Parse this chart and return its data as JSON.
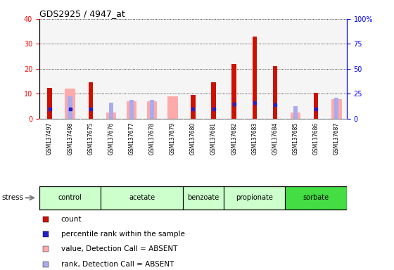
{
  "title": "GDS2925 / 4947_at",
  "samples": [
    "GSM137497",
    "GSM137498",
    "GSM137675",
    "GSM137676",
    "GSM137677",
    "GSM137678",
    "GSM137679",
    "GSM137680",
    "GSM137681",
    "GSM137682",
    "GSM137683",
    "GSM137684",
    "GSM137685",
    "GSM137686",
    "GSM137687"
  ],
  "count": [
    12.5,
    0,
    14.5,
    0,
    0,
    0,
    0,
    9.5,
    14.5,
    22,
    33,
    21,
    0,
    10.5,
    0
  ],
  "percentile": [
    10,
    10,
    10,
    0,
    0,
    0,
    0,
    10,
    10,
    15,
    16,
    14,
    0,
    10,
    0
  ],
  "absent_value": [
    0,
    12,
    0,
    2.5,
    7,
    7,
    9,
    0,
    0,
    0,
    0,
    0,
    2.5,
    0,
    8
  ],
  "absent_rank": [
    0,
    9,
    0,
    6.5,
    7.5,
    7.5,
    0,
    0,
    0,
    0,
    0,
    0,
    5,
    0,
    8.5
  ],
  "groups": [
    {
      "name": "control",
      "indices": [
        0,
        1,
        2
      ],
      "color": "#ccffcc"
    },
    {
      "name": "acetate",
      "indices": [
        3,
        4,
        5,
        6
      ],
      "color": "#ccffcc"
    },
    {
      "name": "benzoate",
      "indices": [
        7,
        8
      ],
      "color": "#ccffcc"
    },
    {
      "name": "propionate",
      "indices": [
        9,
        10,
        11
      ],
      "color": "#ccffcc"
    },
    {
      "name": "sorbate",
      "indices": [
        12,
        13,
        14
      ],
      "color": "#44dd44"
    }
  ],
  "ylim_left": [
    0,
    40
  ],
  "ylim_right": [
    0,
    100
  ],
  "left_ticks": [
    0,
    10,
    20,
    30,
    40
  ],
  "right_ticks": [
    0,
    25,
    50,
    75,
    100
  ],
  "count_color": "#cc1100",
  "percentile_color": "#2222cc",
  "absent_value_color": "#ffaaaa",
  "absent_rank_color": "#aaaaee",
  "background_plot": "#f5f5f5",
  "legend_items": [
    "count",
    "percentile rank within the sample",
    "value, Detection Call = ABSENT",
    "rank, Detection Call = ABSENT"
  ]
}
